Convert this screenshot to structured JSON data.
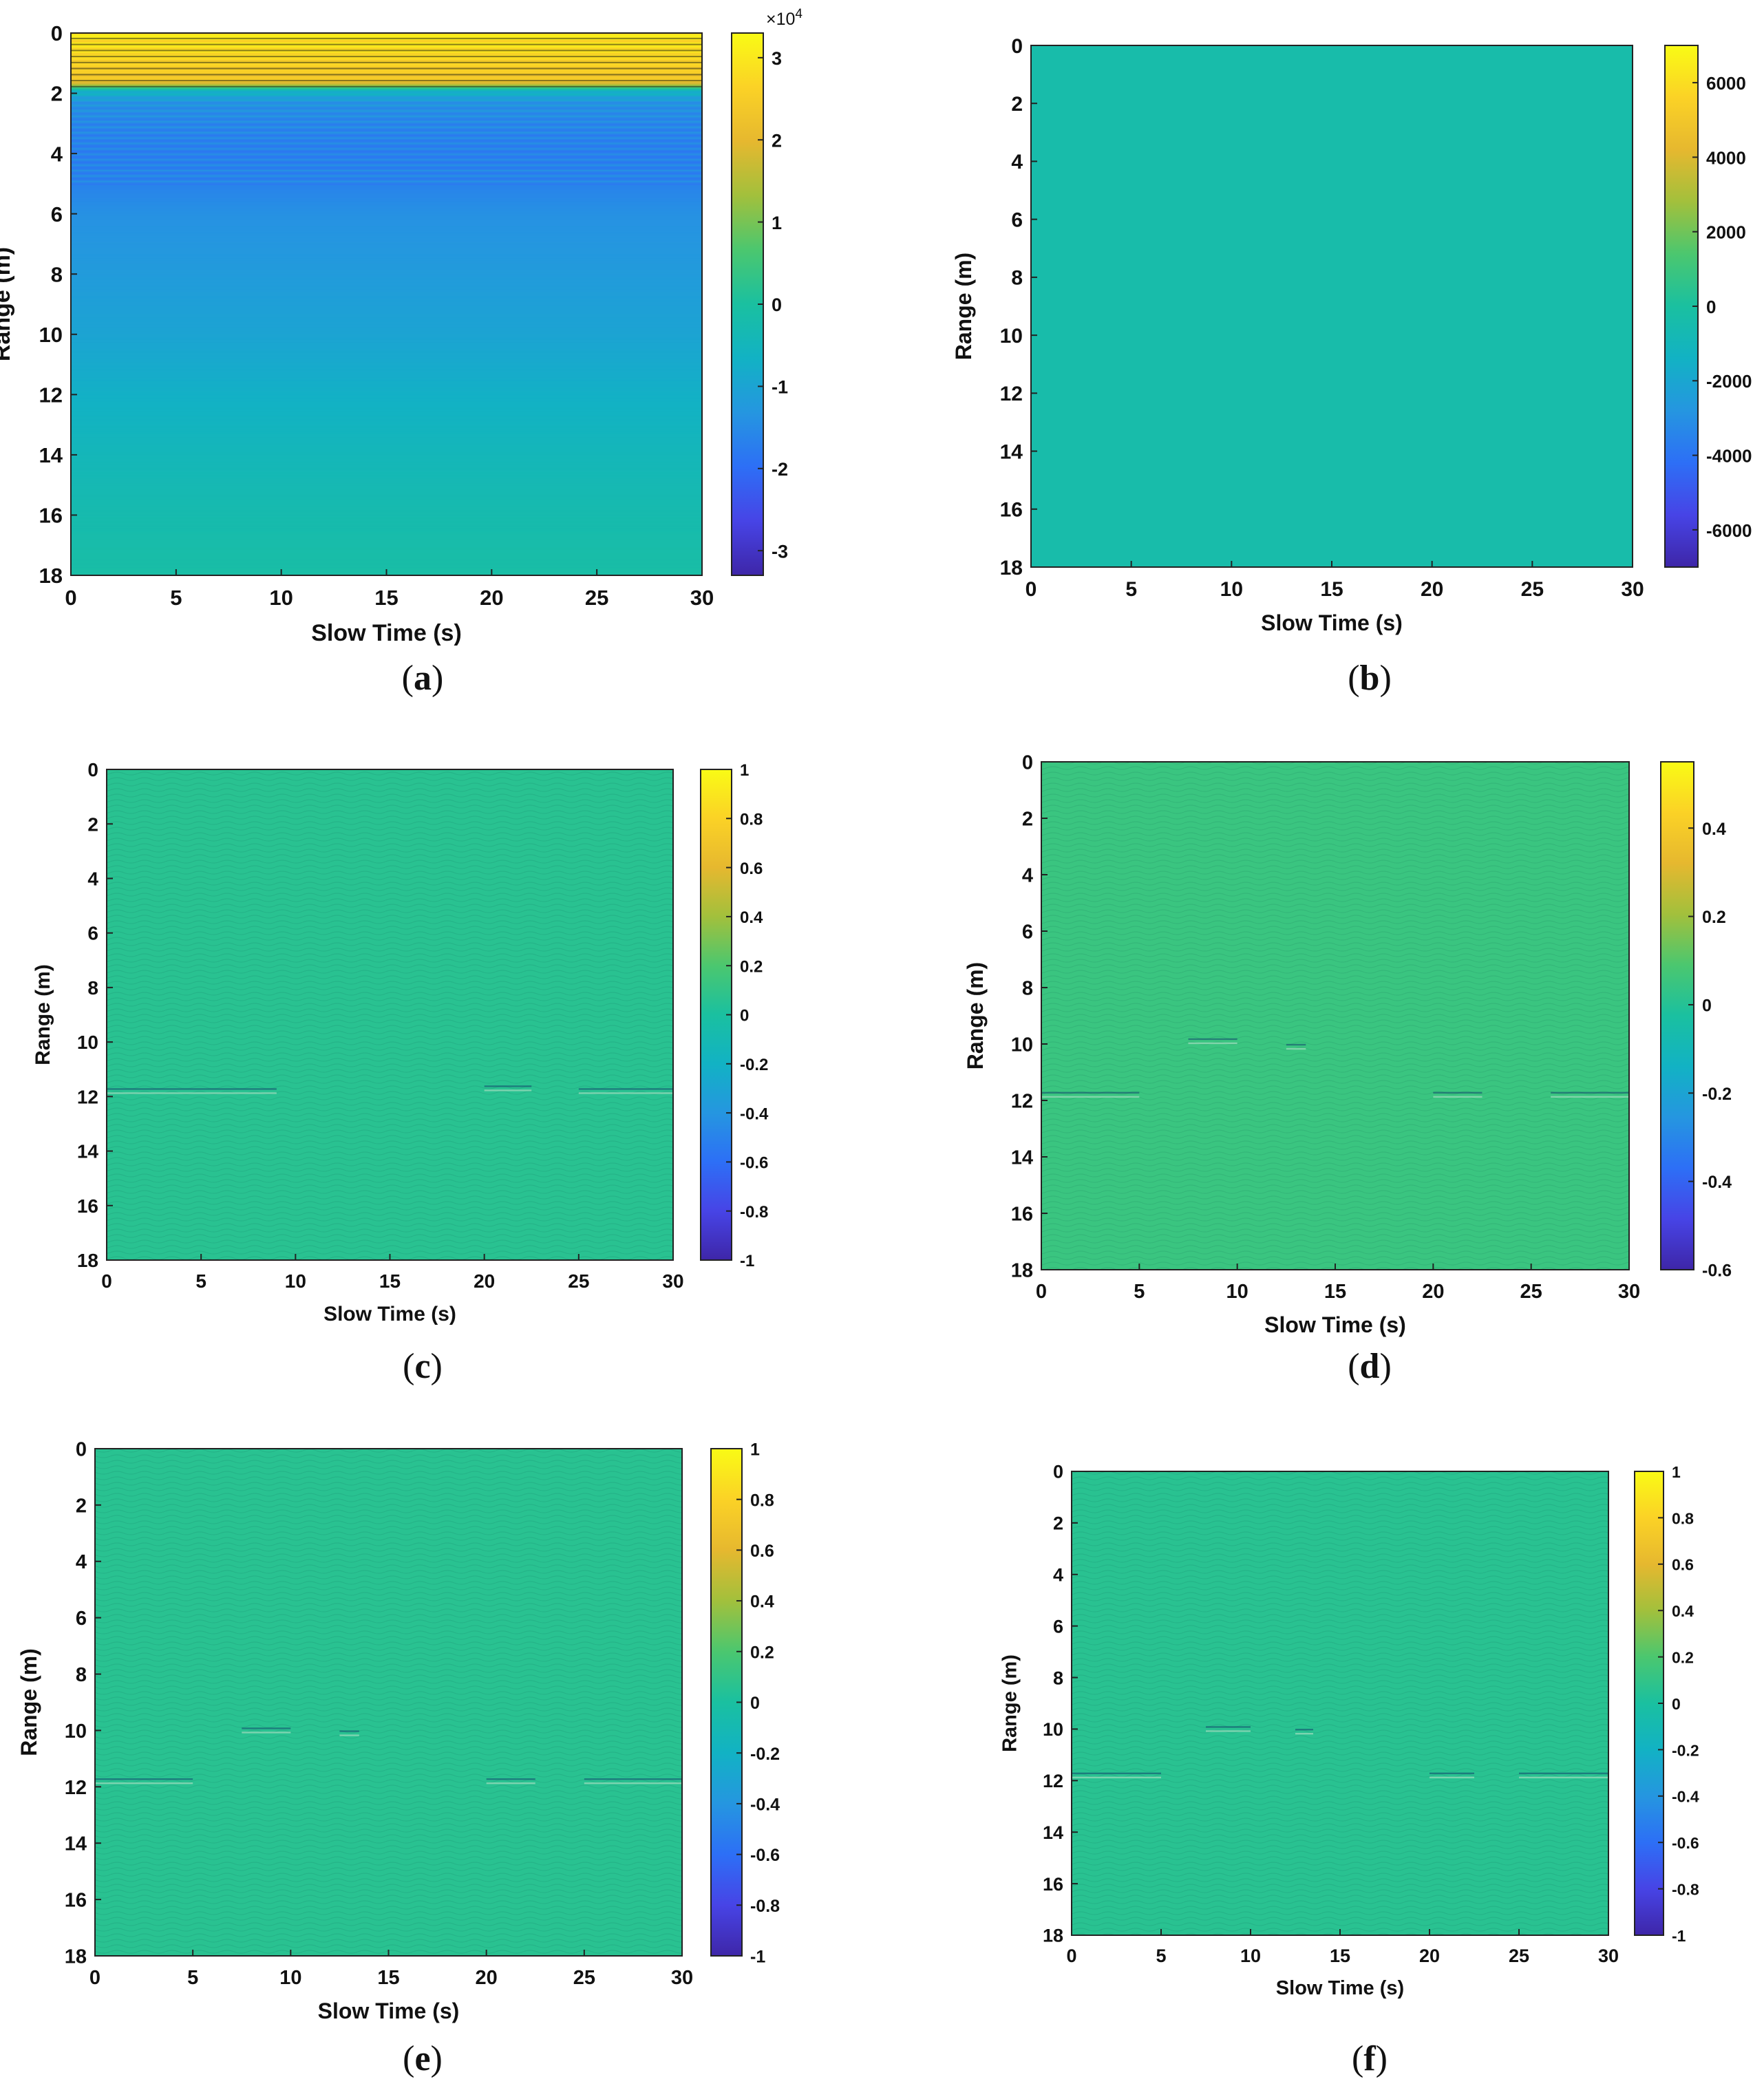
{
  "figure": {
    "panels": [
      {
        "caption_open": "(",
        "caption_letter": "a",
        "caption_close": ")"
      },
      {
        "caption_open": "(",
        "caption_letter": "b",
        "caption_close": ")"
      },
      {
        "caption_open": "(",
        "caption_letter": "c",
        "caption_close": ")"
      },
      {
        "caption_open": "(",
        "caption_letter": "d",
        "caption_close": ")"
      },
      {
        "caption_open": "(",
        "caption_letter": "e",
        "caption_close": ")"
      },
      {
        "caption_open": "(",
        "caption_letter": "f",
        "caption_close": ")"
      }
    ]
  },
  "colormap": [
    "#3e26a8",
    "#4744e6",
    "#2d6ff6",
    "#2596e0",
    "#12b2c4",
    "#1ac0a0",
    "#4bc76f",
    "#a2c03c",
    "#e6b82f",
    "#fbd226",
    "#f9fb15"
  ],
  "chart_data": [
    {
      "type": "heatmap",
      "xlabel": "Slow Time (s)",
      "ylabel": "Range (m)",
      "xlim": [
        0,
        30
      ],
      "ylim": [
        0,
        18
      ],
      "xticks": [
        0,
        5,
        10,
        15,
        20,
        25,
        30
      ],
      "yticks": [
        0,
        2,
        4,
        6,
        8,
        10,
        12,
        14,
        16,
        18
      ],
      "y_reversed": true,
      "clim": [
        -33000,
        33000
      ],
      "colorbar_ticks": [
        3,
        2,
        1,
        0,
        -1,
        -2,
        -3
      ],
      "colorbar_tick_labels": [
        "3",
        "2",
        "1",
        "0",
        "-1",
        "-2",
        "-3"
      ],
      "colorbar_multiplier": "×10",
      "colorbar_exponent": "4",
      "pattern": "horizontal bands constant over slow time: ~3.2e4 (yellow) at range 0–1.8 m, ~-1.5e4 (blue) at 2–5 m, rising smoothly to ~0 by 18 m",
      "profile": [
        [
          0,
          31000
        ],
        [
          0.4,
          30000
        ],
        [
          0.8,
          28000
        ],
        [
          1.2,
          26000
        ],
        [
          1.6,
          24000
        ],
        [
          1.9,
          -6000
        ],
        [
          2.3,
          -14000
        ],
        [
          3,
          -16000
        ],
        [
          4,
          -17000
        ],
        [
          5,
          -16500
        ],
        [
          6,
          -14000
        ],
        [
          8,
          -12000
        ],
        [
          10,
          -10000
        ],
        [
          12,
          -7000
        ],
        [
          14,
          -4500
        ],
        [
          16,
          -2500
        ],
        [
          18,
          -1000
        ]
      ]
    },
    {
      "type": "heatmap",
      "xlabel": "Slow Time (s)",
      "ylabel": "Range (m)",
      "xlim": [
        0,
        30
      ],
      "ylim": [
        0,
        18
      ],
      "xticks": [
        0,
        5,
        10,
        15,
        20,
        25,
        30
      ],
      "yticks": [
        0,
        2,
        4,
        6,
        8,
        10,
        12,
        14,
        16,
        18
      ],
      "y_reversed": true,
      "clim": [
        -7000,
        7000
      ],
      "colorbar_ticks": [
        6000,
        4000,
        2000,
        0,
        -2000,
        -4000,
        -6000
      ],
      "colorbar_tick_labels": [
        "6000",
        "4000",
        "2000",
        "0",
        "-2000",
        "-4000",
        "-6000"
      ],
      "pattern": "near zero everywhere (uniform teal)",
      "fill_value": -400
    },
    {
      "type": "heatmap",
      "xlabel": "Slow Time (s)",
      "ylabel": "Range (m)",
      "xlim": [
        0,
        30
      ],
      "ylim": [
        0,
        18
      ],
      "xticks": [
        0,
        5,
        10,
        15,
        20,
        25,
        30
      ],
      "yticks": [
        0,
        2,
        4,
        6,
        8,
        10,
        12,
        14,
        16,
        18
      ],
      "y_reversed": true,
      "clim": [
        -1,
        1
      ],
      "colorbar_ticks": [
        1,
        0.8,
        0.6,
        0.4,
        0.2,
        0,
        -0.2,
        -0.4,
        -0.6,
        -0.8,
        -1
      ],
      "colorbar_tick_labels": [
        "1",
        "0.8",
        "0.6",
        "0.4",
        "0.2",
        "0",
        "-0.2",
        "-0.4",
        "-0.6",
        "-0.8",
        "-1"
      ],
      "pattern": "low-level noise near zero, faint streaks near 11.8 m",
      "fill_value": 0.06,
      "features": [
        {
          "x": [
            0,
            9
          ],
          "y": 11.8
        },
        {
          "x": [
            20,
            22.5
          ],
          "y": 11.7
        },
        {
          "x": [
            25,
            30
          ],
          "y": 11.8
        }
      ]
    },
    {
      "type": "heatmap",
      "xlabel": "Slow Time (s)",
      "ylabel": "Range (m)",
      "xlim": [
        0,
        30
      ],
      "ylim": [
        0,
        18
      ],
      "xticks": [
        0,
        5,
        10,
        15,
        20,
        25,
        30
      ],
      "yticks": [
        0,
        2,
        4,
        6,
        8,
        10,
        12,
        14,
        16,
        18
      ],
      "y_reversed": true,
      "clim": [
        -0.6,
        0.55
      ],
      "colorbar_ticks": [
        0.4,
        0.2,
        0,
        -0.2,
        -0.4,
        -0.6
      ],
      "colorbar_tick_labels": [
        "0.4",
        "0.2",
        "0",
        "-0.2",
        "-0.4",
        "-0.6"
      ],
      "pattern": "near zero with faint wavy texture; features near 9.9 m and 11.8 m",
      "fill_value": 0.05,
      "features": [
        {
          "x": [
            7.5,
            10
          ],
          "y": 9.9
        },
        {
          "x": [
            12.5,
            13.5
          ],
          "y": 10.1
        },
        {
          "x": [
            0,
            5
          ],
          "y": 11.8
        },
        {
          "x": [
            20,
            22.5
          ],
          "y": 11.8
        },
        {
          "x": [
            26,
            30
          ],
          "y": 11.8
        }
      ]
    },
    {
      "type": "heatmap",
      "xlabel": "Slow Time (s)",
      "ylabel": "Range (m)",
      "xlim": [
        0,
        30
      ],
      "ylim": [
        0,
        18
      ],
      "xticks": [
        0,
        5,
        10,
        15,
        20,
        25,
        30
      ],
      "yticks": [
        0,
        2,
        4,
        6,
        8,
        10,
        12,
        14,
        16,
        18
      ],
      "y_reversed": true,
      "clim": [
        -1,
        1
      ],
      "colorbar_ticks": [
        1,
        0.8,
        0.6,
        0.4,
        0.2,
        0,
        -0.2,
        -0.4,
        -0.6,
        -0.8,
        -1
      ],
      "colorbar_tick_labels": [
        "1",
        "0.8",
        "0.6",
        "0.4",
        "0.2",
        "0",
        "-0.2",
        "-0.4",
        "-0.6",
        "-0.8",
        "-1"
      ],
      "pattern": "near zero with faint wavy texture; features near 10 m and 11.8 m",
      "fill_value": 0.06,
      "features": [
        {
          "x": [
            7.5,
            10
          ],
          "y": 10.0
        },
        {
          "x": [
            12.5,
            13.5
          ],
          "y": 10.1
        },
        {
          "x": [
            0,
            5
          ],
          "y": 11.8
        },
        {
          "x": [
            20,
            22.5
          ],
          "y": 11.8
        },
        {
          "x": [
            25,
            30
          ],
          "y": 11.8
        }
      ]
    },
    {
      "type": "heatmap",
      "xlabel": "Slow Time (s)",
      "ylabel": "Range (m)",
      "xlim": [
        0,
        30
      ],
      "ylim": [
        0,
        18
      ],
      "xticks": [
        0,
        5,
        10,
        15,
        20,
        25,
        30
      ],
      "yticks": [
        0,
        2,
        4,
        6,
        8,
        10,
        12,
        14,
        16,
        18
      ],
      "y_reversed": true,
      "clim": [
        -1,
        1
      ],
      "colorbar_ticks": [
        1,
        0.8,
        0.6,
        0.4,
        0.2,
        0,
        -0.2,
        -0.4,
        -0.6,
        -0.8,
        -1
      ],
      "colorbar_tick_labels": [
        "1",
        "0.8",
        "0.6",
        "0.4",
        "0.2",
        "0",
        "-0.2",
        "-0.4",
        "-0.6",
        "-0.8",
        "-1"
      ],
      "pattern": "near zero with faint wavy texture; features near 10 m and 11.8 m",
      "fill_value": 0.06,
      "features": [
        {
          "x": [
            7.5,
            10
          ],
          "y": 10.0
        },
        {
          "x": [
            12.5,
            13.5
          ],
          "y": 10.1
        },
        {
          "x": [
            0,
            5
          ],
          "y": 11.8
        },
        {
          "x": [
            20,
            22.5
          ],
          "y": 11.8
        },
        {
          "x": [
            25,
            30
          ],
          "y": 11.8
        }
      ]
    }
  ]
}
